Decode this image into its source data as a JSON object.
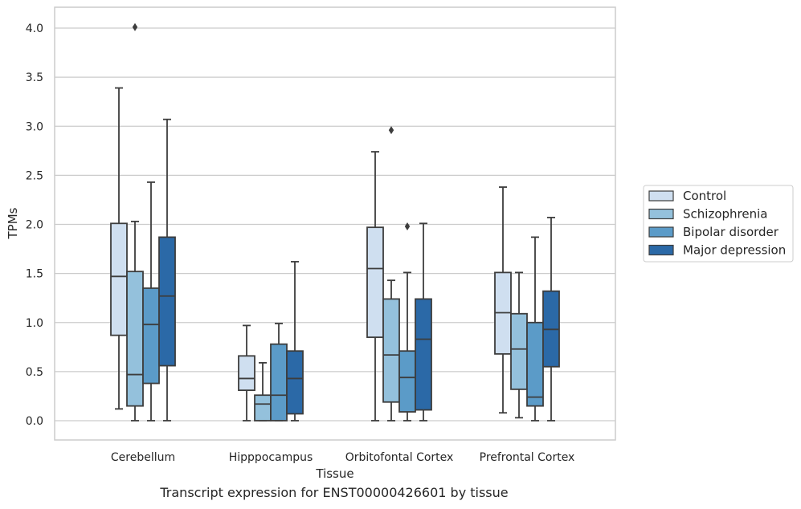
{
  "chart_data": {
    "type": "box",
    "xlabel": "Tissue",
    "ylabel": "TPMs",
    "ylim": [
      -0.19,
      4.22
    ],
    "yticks": [
      0.0,
      0.5,
      1.0,
      1.5,
      2.0,
      2.5,
      3.0,
      3.5,
      4.0
    ],
    "grid": "horizontal",
    "legend_position": "right",
    "categories": [
      "Cerebellum",
      "Hipppocampus",
      "Orbitofontal Cortex",
      "Prefrontal Cortex"
    ],
    "series": [
      {
        "name": "Control",
        "color": "#cfdff0",
        "boxes": [
          {
            "min": 0.12,
            "q1": 0.87,
            "median": 1.47,
            "q3": 2.01,
            "max": 3.39,
            "outliers": []
          },
          {
            "min": 0.0,
            "q1": 0.31,
            "median": 0.43,
            "q3": 0.66,
            "max": 0.97,
            "outliers": []
          },
          {
            "min": 0.0,
            "q1": 0.85,
            "median": 1.55,
            "q3": 1.97,
            "max": 2.74,
            "outliers": []
          },
          {
            "min": 0.08,
            "q1": 0.68,
            "median": 1.1,
            "q3": 1.51,
            "max": 2.38,
            "outliers": []
          }
        ]
      },
      {
        "name": "Schizophrenia",
        "color": "#94c1dc",
        "boxes": [
          {
            "min": 0.0,
            "q1": 0.15,
            "median": 0.47,
            "q3": 1.52,
            "max": 2.03,
            "outliers": [
              4.01
            ]
          },
          {
            "min": 0.0,
            "q1": 0.0,
            "median": 0.17,
            "q3": 0.26,
            "max": 0.59,
            "outliers": []
          },
          {
            "min": 0.0,
            "q1": 0.19,
            "median": 0.67,
            "q3": 1.24,
            "max": 1.43,
            "outliers": [
              2.96
            ]
          },
          {
            "min": 0.03,
            "q1": 0.32,
            "median": 0.73,
            "q3": 1.09,
            "max": 1.51,
            "outliers": []
          }
        ]
      },
      {
        "name": "Bipolar disorder",
        "color": "#5b9bc8",
        "boxes": [
          {
            "min": 0.0,
            "q1": 0.38,
            "median": 0.98,
            "q3": 1.35,
            "max": 2.43,
            "outliers": []
          },
          {
            "min": 0.0,
            "q1": 0.0,
            "median": 0.26,
            "q3": 0.78,
            "max": 0.99,
            "outliers": []
          },
          {
            "min": 0.0,
            "q1": 0.09,
            "median": 0.44,
            "q3": 0.71,
            "max": 1.51,
            "outliers": [
              1.98
            ]
          },
          {
            "min": 0.0,
            "q1": 0.15,
            "median": 0.24,
            "q3": 1.0,
            "max": 1.87,
            "outliers": []
          }
        ]
      },
      {
        "name": "Major depression",
        "color": "#2b69a7",
        "boxes": [
          {
            "min": 0.0,
            "q1": 0.56,
            "median": 1.27,
            "q3": 1.87,
            "max": 3.07,
            "outliers": []
          },
          {
            "min": 0.0,
            "q1": 0.07,
            "median": 0.43,
            "q3": 0.71,
            "max": 1.62,
            "outliers": []
          },
          {
            "min": 0.0,
            "q1": 0.11,
            "median": 0.83,
            "q3": 1.24,
            "max": 2.01,
            "outliers": []
          },
          {
            "min": 0.0,
            "q1": 0.55,
            "median": 0.93,
            "q3": 1.32,
            "max": 2.07,
            "outliers": []
          }
        ]
      }
    ]
  },
  "caption": "Transcript expression for ENST00000426601 by tissue"
}
